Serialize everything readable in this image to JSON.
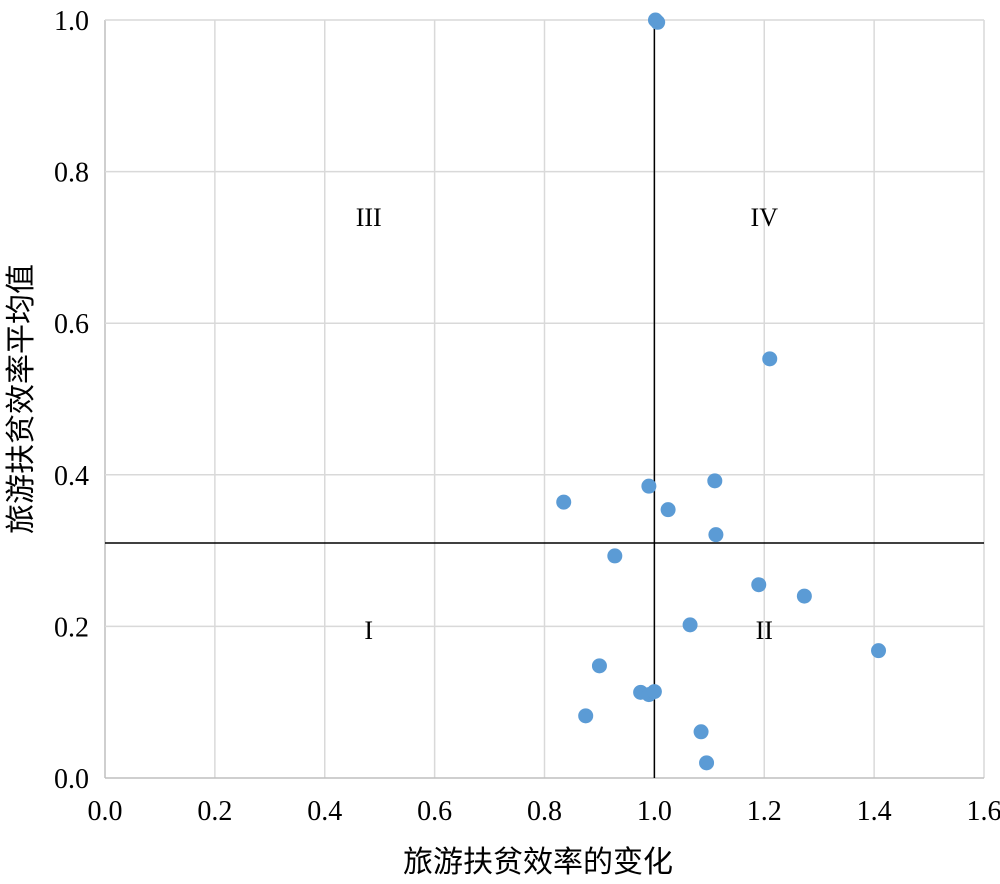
{
  "chart_data": {
    "type": "scatter",
    "xlabel": "旅游扶贫效率的变化",
    "ylabel": "旅游扶贫效率平均值",
    "xlim": [
      0,
      1.6
    ],
    "ylim": [
      0,
      1.0
    ],
    "x_ticks": [
      "0.0",
      "0.2",
      "0.4",
      "0.6",
      "0.8",
      "1.0",
      "1.2",
      "1.4",
      "1.6"
    ],
    "y_ticks": [
      "0.0",
      "0.2",
      "0.4",
      "0.6",
      "0.8",
      "1.0"
    ],
    "grid": true,
    "marker_color": "#5b9bd5",
    "reference_lines": {
      "x": 1.0,
      "y": 0.31
    },
    "quadrant_labels": [
      {
        "label": "III",
        "x": 0.48,
        "y": 0.74
      },
      {
        "label": "IV",
        "x": 1.2,
        "y": 0.74
      },
      {
        "label": "I",
        "x": 0.48,
        "y": 0.195
      },
      {
        "label": "II",
        "x": 1.2,
        "y": 0.195
      }
    ],
    "points": [
      {
        "x": 1.002,
        "y": 1.0
      },
      {
        "x": 1.006,
        "y": 0.997
      },
      {
        "x": 1.21,
        "y": 0.553
      },
      {
        "x": 1.11,
        "y": 0.392
      },
      {
        "x": 0.99,
        "y": 0.385
      },
      {
        "x": 0.835,
        "y": 0.364
      },
      {
        "x": 1.025,
        "y": 0.354
      },
      {
        "x": 1.112,
        "y": 0.321
      },
      {
        "x": 0.928,
        "y": 0.293
      },
      {
        "x": 1.19,
        "y": 0.255
      },
      {
        "x": 1.273,
        "y": 0.24
      },
      {
        "x": 1.065,
        "y": 0.202
      },
      {
        "x": 1.408,
        "y": 0.168
      },
      {
        "x": 0.9,
        "y": 0.148
      },
      {
        "x": 0.975,
        "y": 0.113
      },
      {
        "x": 0.99,
        "y": 0.11
      },
      {
        "x": 1.0,
        "y": 0.114
      },
      {
        "x": 0.875,
        "y": 0.082
      },
      {
        "x": 1.085,
        "y": 0.061
      },
      {
        "x": 1.095,
        "y": 0.02
      }
    ]
  }
}
